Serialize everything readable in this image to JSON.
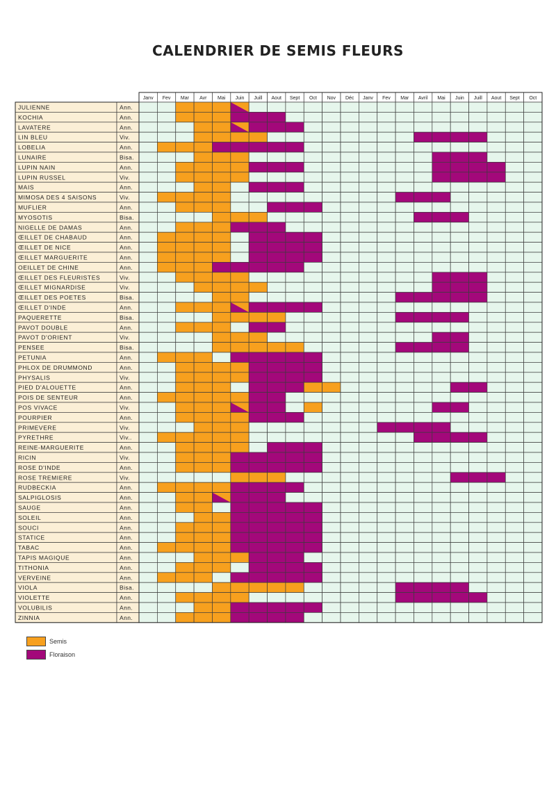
{
  "title": "CALENDRIER DE SEMIS FLEURS",
  "colors": {
    "semis": "#f7a01e",
    "floraison": "#a3087a",
    "cell_bg": "#e6f6ec",
    "name_bg": "#fbefd6",
    "grid": "#3c3c3c"
  },
  "months": [
    "Janv",
    "Fev",
    "Mar",
    "Avr",
    "Mai",
    "Juin",
    "Juill",
    "Aout",
    "Sept",
    "Oct",
    "Nov",
    "Déc",
    "Janv",
    "Fev",
    "Mar",
    "Avril",
    "Mai",
    "Juin",
    "Juill",
    "Aout",
    "Sept",
    "Oct"
  ],
  "legend": [
    {
      "label": "Semis",
      "key": "semis"
    },
    {
      "label": "Floraison",
      "key": "floraison"
    }
  ],
  "plants": [
    {
      "name": "JULIENNE",
      "type": "Ann.",
      "s": "..SSSD"
    },
    {
      "name": "KOCHIA",
      "type": "Ann.",
      "s": "..SSSFFF"
    },
    {
      "name": "LAVATERE",
      "type": "Ann.",
      "s": "...SSDFFF"
    },
    {
      "name": "LIN BLEU",
      "type": "Viv.",
      "s": "...SSSS........FFFF"
    },
    {
      "name": "LOBELIA",
      "type": "Ann.",
      "s": ".SSSFFFFF"
    },
    {
      "name": "LUNAIRE",
      "type": "Bisa.",
      "s": "...SSS..........FFF"
    },
    {
      "name": "LUPIN NAIN",
      "type": "Ann.",
      "s": "..SSSSFFF.......FFFF"
    },
    {
      "name": "LUPIN RUSSEL",
      "type": "Viv.",
      "s": "..SSSS..........FFFF"
    },
    {
      "name": "MAIS",
      "type": "Ann.",
      "s": "...SS.FFF"
    },
    {
      "name": "MIMOSA DES 4 SAISONS",
      "type": "Viv.",
      "s": ".SSSS.........FFF"
    },
    {
      "name": "MUFLIER",
      "type": "Ann.",
      "s": "..SSS..FFF"
    },
    {
      "name": "MYOSOTIS",
      "type": "Bisa.",
      "s": "....SSS........FFF"
    },
    {
      "name": "NIGELLE DE DAMAS",
      "type": "Ann.",
      "s": "..SSSFFF"
    },
    {
      "name": "ŒILLET DE CHABAUD",
      "type": "Ann.",
      "s": ".SSSS.FFFF"
    },
    {
      "name": "ŒILLET DE NICE",
      "type": "Ann.",
      "s": ".SSSS.FFFF"
    },
    {
      "name": "ŒILLET MARGUERITE",
      "type": "Ann.",
      "s": ".SSSS.FFFF"
    },
    {
      "name": "OEILLET DE CHINE",
      "type": "Ann.",
      "s": ".SSSFFFFF"
    },
    {
      "name": "ŒILLET DES FLEURISTES",
      "type": "Viv.",
      "s": "..SSSS..........FFF"
    },
    {
      "name": "ŒILLET MIGNARDISE",
      "type": "Viv.",
      "s": "...SSSS.........FFF"
    },
    {
      "name": "ŒILLET DES POETES",
      "type": "Bisa.",
      "s": "....SS........FFFFF"
    },
    {
      "name": "ŒILLET D'INDE",
      "type": "Ann.",
      "s": "..SSSDFFFF"
    },
    {
      "name": "PAQUERETTE",
      "type": "Bisa.",
      "s": "....SSSS......FFFF"
    },
    {
      "name": "PAVOT DOUBLE",
      "type": "Ann.",
      "s": "..SSS.FF"
    },
    {
      "name": "PAVOT D'ORIENT",
      "type": "Viv.",
      "s": "....SSS.........FF"
    },
    {
      "name": "PENSEE",
      "type": "Bisa.",
      "s": "....SSSSS.....FFFF"
    },
    {
      "name": "PETUNIA",
      "type": "Ann.",
      "s": ".SSS.FFFFF"
    },
    {
      "name": "PHLOX DE DRUMMOND",
      "type": "Ann.",
      "s": "..SSSSFFFF"
    },
    {
      "name": "PHYSALIS",
      "type": "Viv.",
      "s": "..SSSSFFFF"
    },
    {
      "name": "PIED D'ALOUETTE",
      "type": "Ann.",
      "s": "..SSS.FFFSS......FF"
    },
    {
      "name": "POIS DE SENTEUR",
      "type": "Ann.",
      "s": ".SSSSSFF"
    },
    {
      "name": "POS VIVACE",
      "type": "Viv.",
      "s": "..SSSDFF.S......FF"
    },
    {
      "name": "POURPIER",
      "type": "Ann.",
      "s": "..SSSSFFF"
    },
    {
      "name": "PRIMEVERE",
      "type": "Viv.",
      "s": "...SSS.......FFFF"
    },
    {
      "name": "PYRETHRE",
      "type": "Viv..",
      "s": ".SSSSS.........FFFF"
    },
    {
      "name": "REINE-MARGUERITE",
      "type": "Ann.",
      "s": "..SSSS.FFF"
    },
    {
      "name": "RICIN",
      "type": "Viv.",
      "s": "..SSSFFFFF"
    },
    {
      "name": "ROSE D'INDE",
      "type": "Ann.",
      "s": "..SSSFFFFF"
    },
    {
      "name": "ROSE TREMIERE",
      "type": "Viv.",
      "s": ".....SSS.........FFF"
    },
    {
      "name": "RUDBECKIA",
      "type": "Ann.",
      "s": ".SSSSFFFF"
    },
    {
      "name": "SALPIGLOSIS",
      "type": "Ann.",
      "s": "..SSDFFF"
    },
    {
      "name": "SAUGE",
      "type": "Ann.",
      "s": "..SS.FFFFF"
    },
    {
      "name": "SOLEIL",
      "type": "Ann.",
      "s": "...SSFFFFF"
    },
    {
      "name": "SOUCI",
      "type": "Ann.",
      "s": "..SSSFFFFF"
    },
    {
      "name": "STATICE",
      "type": "Ann.",
      "s": "..SSSFFFFF"
    },
    {
      "name": "TABAC",
      "type": "Ann.",
      "s": ".SSSSFFFFF"
    },
    {
      "name": "TAPIS MAGIQUE",
      "type": "Ann.",
      "s": "...SSSFFF"
    },
    {
      "name": "TITHONIA",
      "type": "Ann.",
      "s": "..SSS.FFFF"
    },
    {
      "name": "VERVEINE",
      "type": "Ann.",
      "s": ".SSS.FFFFF"
    },
    {
      "name": "VIOLA",
      "type": "Bisa.",
      "s": "....SSSSS.....FFFF"
    },
    {
      "name": "VIOLETTE",
      "type": "Ann.",
      "s": "..SSSS........FFFFF"
    },
    {
      "name": "VOLUBILIS",
      "type": "Ann.",
      "s": "...SSFFFFF"
    },
    {
      "name": "ZINNIA",
      "type": "Ann.",
      "s": "..SSSFFFF"
    }
  ]
}
